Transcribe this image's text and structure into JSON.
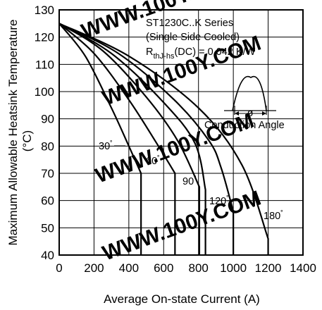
{
  "chart_data": {
    "type": "line",
    "title": "",
    "xlabel": "Average On-state Current (A)",
    "ylabel_line1": "Maximum Allowable Heatsink Temperature",
    "ylabel_line2": "(°C)",
    "xlim": [
      0,
      1400
    ],
    "ylim": [
      40,
      130
    ],
    "x_ticks": [
      0,
      200,
      400,
      600,
      800,
      1000,
      1200,
      1400
    ],
    "y_ticks": [
      40,
      50,
      60,
      70,
      80,
      90,
      100,
      110,
      120,
      130
    ],
    "grid": true,
    "annotations": {
      "series_title": "ST1230C..K Series",
      "cooling": "(Single Side Cooled)",
      "resistance_prefix": "R",
      "resistance_sub": "thJ-hs",
      "resistance_suffix": "(DC) = 0.042 K/W",
      "phi": "ø",
      "conduction_angle": "Conduction Angle"
    },
    "series": [
      {
        "name": "30°",
        "label": "30",
        "degree": "˚",
        "x": [
          0,
          150,
          300,
          400,
          470,
          470
        ],
        "y": [
          125,
          113,
          94,
          80,
          70,
          40
        ]
      },
      {
        "name": "60°",
        "label": "60",
        "degree": "˚",
        "x": [
          0,
          200,
          400,
          560,
          665,
          665
        ],
        "y": [
          125,
          114,
          97,
          81,
          70,
          40
        ]
      },
      {
        "name": "90°",
        "label": "90",
        "degree": "˚",
        "x": [
          0,
          250,
          500,
          680,
          805,
          805
        ],
        "y": [
          125,
          115,
          98,
          82,
          65,
          40
        ]
      },
      {
        "name": "120°",
        "label": "120",
        "degree": "˚",
        "x": [
          0,
          300,
          600,
          780,
          840,
          840
        ],
        "y": [
          125,
          114,
          96,
          81,
          64,
          40
        ]
      },
      {
        "name": "",
        "label": "",
        "degree": "",
        "x": [
          0,
          340,
          660,
          860,
          930,
          1000,
          1000
        ],
        "y": [
          125,
          114,
          97,
          82,
          72,
          56,
          40
        ]
      },
      {
        "name": "180°",
        "label": "180",
        "degree": "˚",
        "x": [
          0,
          400,
          800,
          1050,
          1200,
          1200
        ],
        "y": [
          125,
          113,
          94,
          73,
          46,
          40
        ]
      }
    ]
  }
}
